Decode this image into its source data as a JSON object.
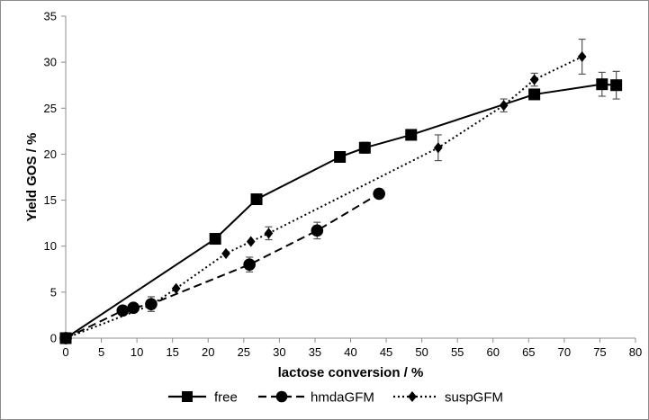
{
  "chart_data": {
    "type": "line",
    "title": "",
    "xlabel": "lactose conversion / %",
    "ylabel": "Yield GOS / %",
    "xlim": [
      0,
      80
    ],
    "ylim": [
      0,
      35
    ],
    "x_ticks": [
      0,
      5,
      10,
      15,
      20,
      25,
      30,
      35,
      40,
      45,
      50,
      55,
      60,
      65,
      70,
      75,
      80
    ],
    "y_ticks": [
      0,
      5,
      10,
      15,
      20,
      25,
      30,
      35
    ],
    "grid": false,
    "legend_position": "bottom",
    "series": [
      {
        "name": "free",
        "marker": "square",
        "line_style": "solid",
        "color": "#000000",
        "x": [
          0,
          21.0,
          26.8,
          38.5,
          42.0,
          48.5,
          65.8,
          75.3,
          77.3
        ],
        "y": [
          0,
          10.8,
          15.1,
          19.7,
          20.7,
          22.1,
          26.5,
          27.6,
          27.5
        ],
        "error": [
          0,
          0,
          0,
          0,
          0.6,
          0,
          0,
          1.3,
          1.5
        ]
      },
      {
        "name": "hmdaGFM",
        "marker": "circle",
        "line_style": "dashed",
        "color": "#000000",
        "x": [
          0,
          8.0,
          9.5,
          12.0,
          25.8,
          35.3,
          44.0
        ],
        "y": [
          0,
          3.0,
          3.3,
          3.7,
          8.0,
          11.7,
          15.7
        ],
        "error": [
          0,
          0,
          0,
          0.8,
          0.8,
          0.9,
          0
        ]
      },
      {
        "name": "suspGFM",
        "marker": "diamond",
        "line_style": "dotted",
        "color": "#000000",
        "x": [
          0,
          12.0,
          15.5,
          22.5,
          26.0,
          28.5,
          52.3,
          61.5,
          65.8,
          72.5
        ],
        "y": [
          0,
          3.6,
          5.4,
          9.2,
          10.5,
          11.4,
          20.7,
          25.3,
          28.1,
          30.6
        ],
        "error": [
          0,
          0,
          0,
          0,
          0,
          0.7,
          1.4,
          0.7,
          0.7,
          1.9
        ]
      }
    ]
  }
}
